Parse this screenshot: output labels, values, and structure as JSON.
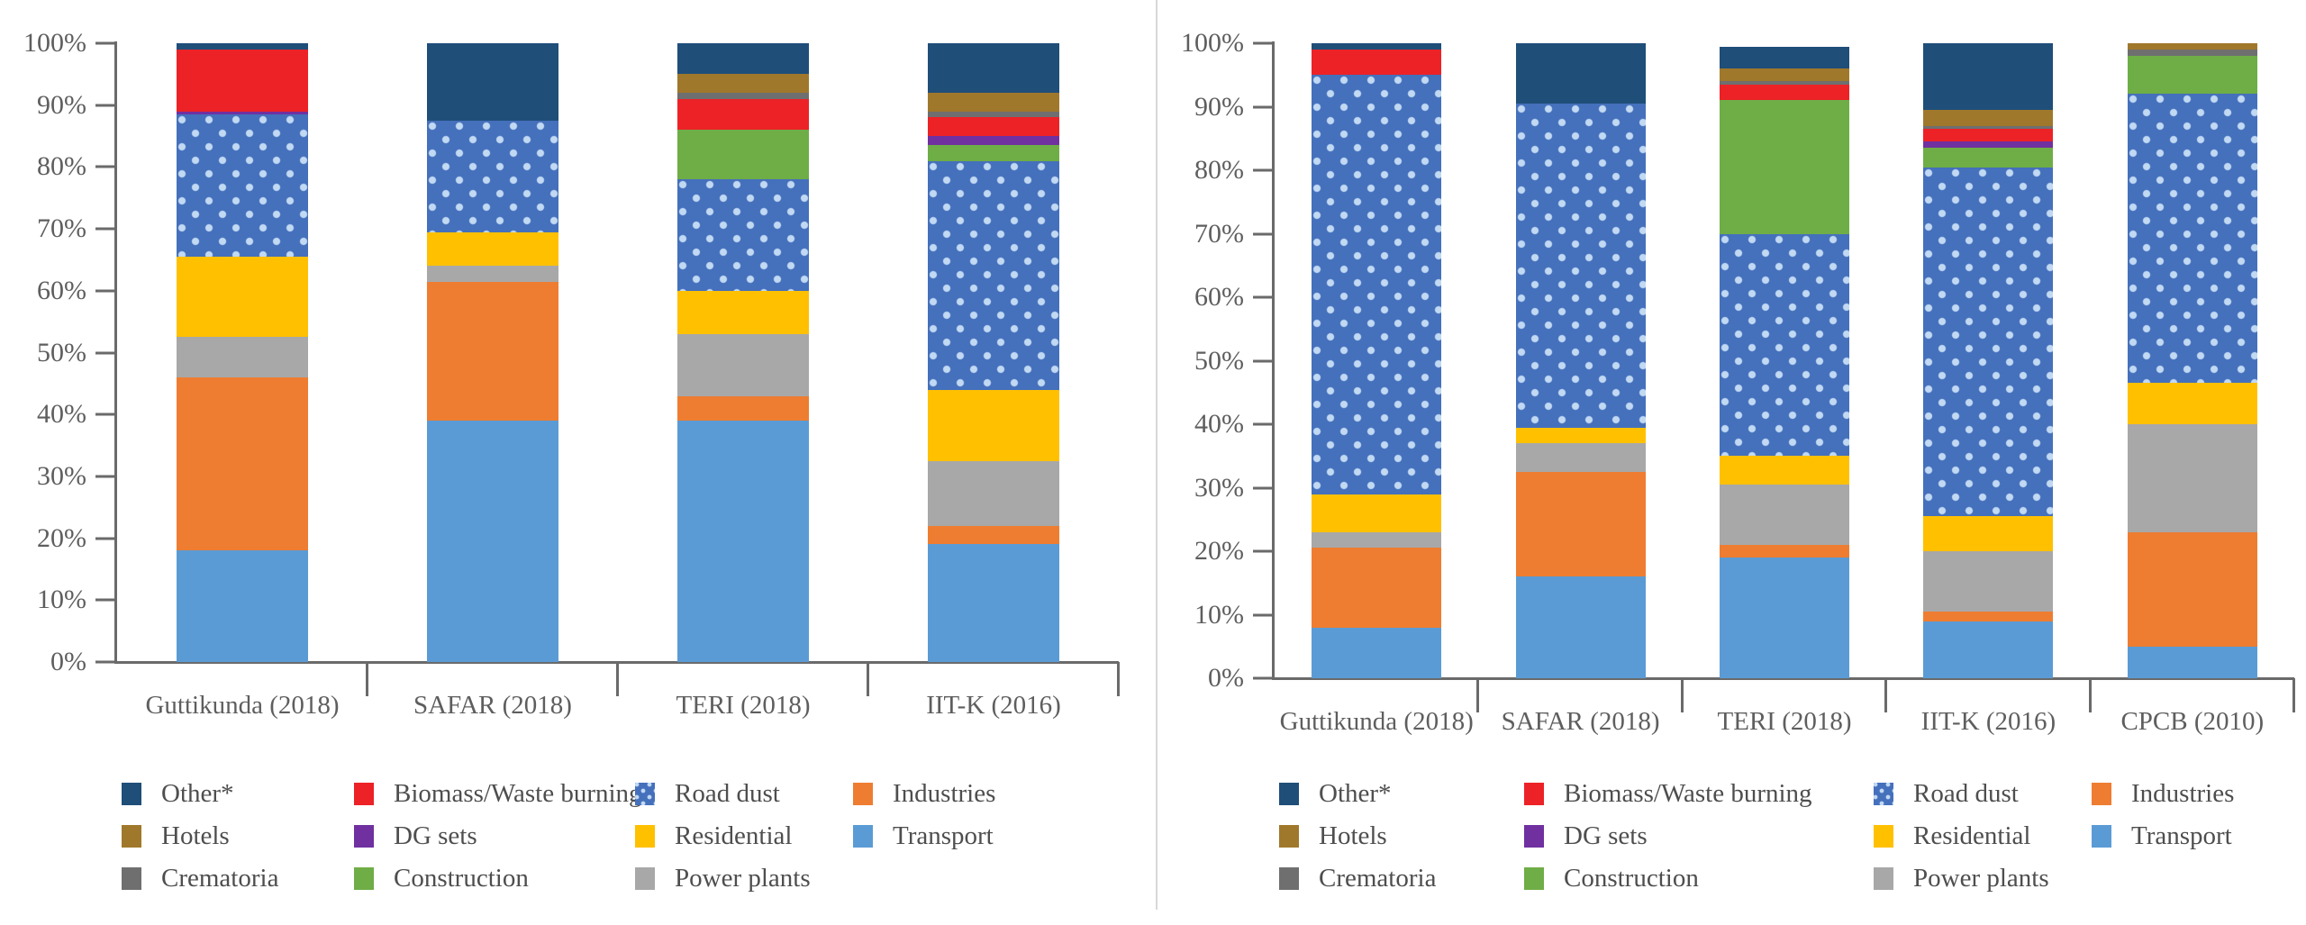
{
  "page": {
    "background": "#ffffff",
    "divider_color": "#d8d8d8"
  },
  "axis": {
    "text_color": "#5e5e5e",
    "line_color": "#6a6a6a",
    "y_ticks": [
      "100%",
      "90%",
      "80%",
      "70%",
      "60%",
      "50%",
      "40%",
      "30%",
      "20%",
      "10%",
      "0%"
    ]
  },
  "legend": {
    "colors": {
      "other": "#1F4E79",
      "hotels": "#A0782B",
      "crematoria": "#6F6F6F",
      "biomass": "#EC2227",
      "dg_sets": "#7030A0",
      "construction": "#6FAD46",
      "road_dust": "#4470BC",
      "road_dust_dot": "#C2D9F3",
      "residential": "#FFC000",
      "power_plants": "#A8A8A8",
      "industries": "#EE7D31",
      "transport": "#5B9BD5"
    },
    "columns": [
      [
        {
          "label": "Other*",
          "key": "other"
        },
        {
          "label": "Hotels",
          "key": "hotels"
        },
        {
          "label": "Crematoria",
          "key": "crematoria"
        }
      ],
      [
        {
          "label": "Biomass/Waste burning",
          "key": "biomass"
        },
        {
          "label": "DG sets",
          "key": "dg_sets"
        },
        {
          "label": "Construction",
          "key": "construction"
        }
      ],
      [
        {
          "label": "Road dust",
          "key": "road_dust",
          "pattern": "dots"
        },
        {
          "label": "Residential",
          "key": "residential"
        },
        {
          "label": "Power plants",
          "key": "power_plants"
        }
      ],
      [
        {
          "label": "Industries",
          "key": "industries"
        },
        {
          "label": "Transport",
          "key": "transport"
        }
      ]
    ]
  },
  "chart_data": [
    {
      "type": "bar",
      "stacked": true,
      "units": "percent share",
      "ylim": [
        0,
        100
      ],
      "grid": false,
      "legend_position": "bottom",
      "categories": [
        "Guttikunda (2018)",
        "SAFAR (2018)",
        "TERI (2018)",
        "IIT-K (2016)"
      ],
      "series": [
        {
          "name": "Transport",
          "key": "transport",
          "values": [
            18,
            39,
            39,
            19
          ]
        },
        {
          "name": "Industries",
          "key": "industries",
          "values": [
            28,
            22.5,
            4,
            3
          ]
        },
        {
          "name": "Power plants",
          "key": "power_plants",
          "values": [
            6.5,
            2.5,
            10,
            10.5
          ]
        },
        {
          "name": "Residential",
          "key": "residential",
          "values": [
            13,
            5.5,
            7,
            11.5
          ]
        },
        {
          "name": "Road dust",
          "key": "road_dust",
          "pattern": "dots",
          "values": [
            23,
            18,
            18,
            37
          ]
        },
        {
          "name": "Construction",
          "key": "construction",
          "values": [
            0,
            0,
            8,
            2.5
          ]
        },
        {
          "name": "DG sets",
          "key": "dg_sets",
          "values": [
            0.5,
            0,
            0,
            1.5
          ]
        },
        {
          "name": "Biomass/Waste burning",
          "key": "biomass",
          "values": [
            10,
            0,
            5,
            3
          ]
        },
        {
          "name": "Crematoria",
          "key": "crematoria",
          "values": [
            0,
            0,
            1,
            1
          ]
        },
        {
          "name": "Hotels",
          "key": "hotels",
          "values": [
            0,
            0,
            3,
            3
          ]
        },
        {
          "name": "Other*",
          "key": "other",
          "values": [
            1,
            12.5,
            5,
            8
          ]
        }
      ]
    },
    {
      "type": "bar",
      "stacked": true,
      "units": "percent share",
      "ylim": [
        0,
        100
      ],
      "grid": false,
      "legend_position": "bottom",
      "categories": [
        "Guttikunda (2018)",
        "SAFAR (2018)",
        "TERI (2018)",
        "IIT-K (2016)",
        "CPCB (2010)"
      ],
      "series": [
        {
          "name": "Transport",
          "key": "transport",
          "values": [
            8,
            16,
            19,
            9,
            5
          ]
        },
        {
          "name": "Industries",
          "key": "industries",
          "values": [
            12.5,
            16.5,
            2,
            1.5,
            18
          ]
        },
        {
          "name": "Power plants",
          "key": "power_plants",
          "values": [
            2.5,
            4.5,
            9.5,
            9.5,
            17
          ]
        },
        {
          "name": "Residential",
          "key": "residential",
          "values": [
            6,
            2.5,
            4.5,
            5.5,
            6.5
          ]
        },
        {
          "name": "Road dust",
          "key": "road_dust",
          "pattern": "dots",
          "values": [
            66,
            51,
            35,
            55,
            45.5
          ]
        },
        {
          "name": "Construction",
          "key": "construction",
          "values": [
            0,
            0,
            21,
            3,
            6
          ]
        },
        {
          "name": "DG sets",
          "key": "dg_sets",
          "values": [
            0,
            0,
            0,
            1,
            0
          ]
        },
        {
          "name": "Biomass/Waste burning",
          "key": "biomass",
          "values": [
            4,
            0,
            2.5,
            2,
            0
          ]
        },
        {
          "name": "Crematoria",
          "key": "crematoria",
          "values": [
            0,
            0,
            0.5,
            0.5,
            1
          ]
        },
        {
          "name": "Hotels",
          "key": "hotels",
          "values": [
            0,
            0,
            2,
            2.5,
            1
          ]
        },
        {
          "name": "Other*",
          "key": "other",
          "values": [
            1,
            9.5,
            3.5,
            10.5,
            0
          ]
        }
      ]
    }
  ]
}
